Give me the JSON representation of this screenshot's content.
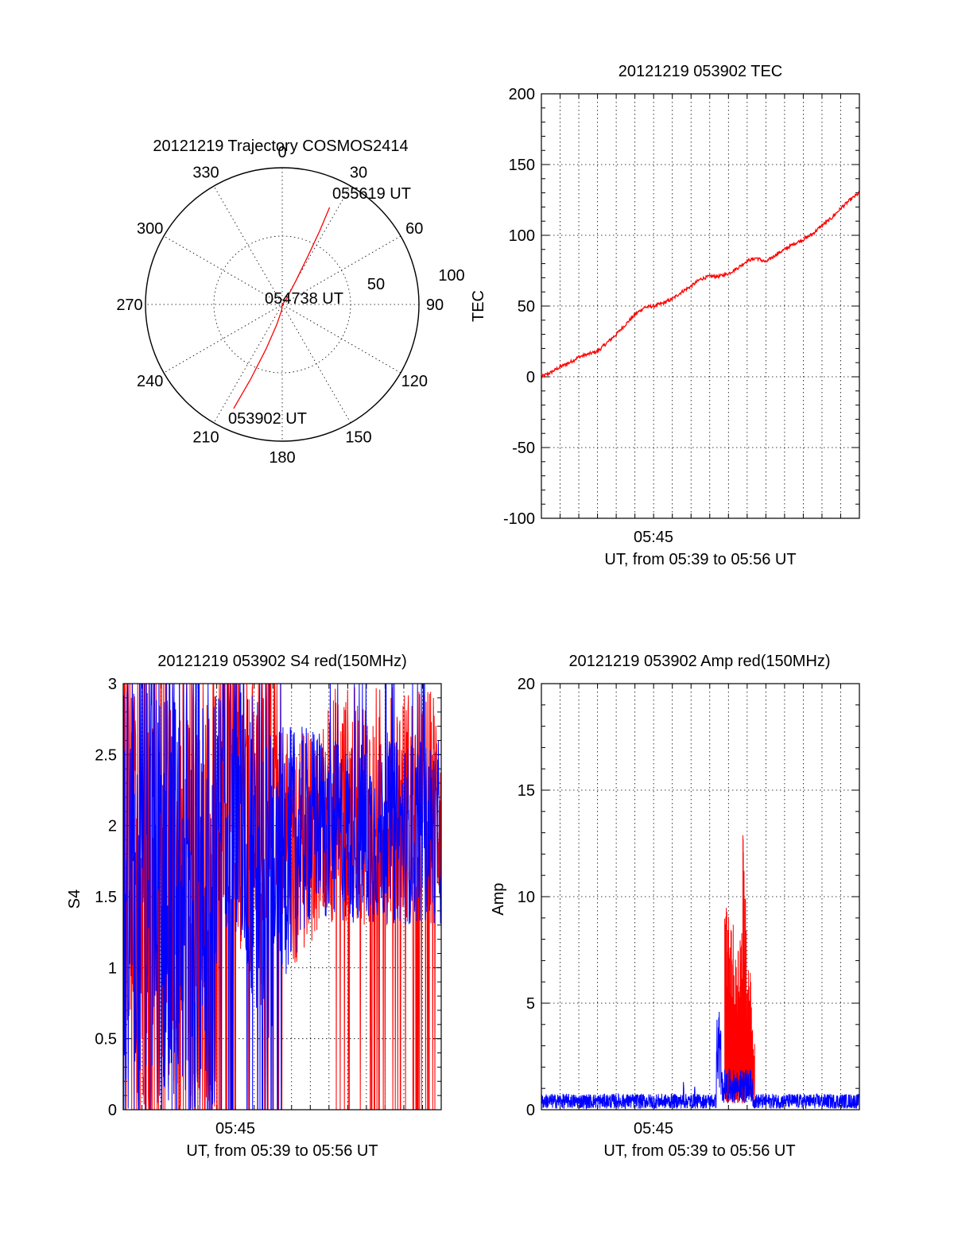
{
  "colors": {
    "red": "#ff0000",
    "blue": "#0000ff",
    "axis": "#000000",
    "background": "#ffffff"
  },
  "chart_data": [
    {
      "type": "polar",
      "title": "20121219 Trajectory COSMOS2414",
      "angle_labels": [
        "0",
        "30",
        "60",
        "90",
        "120",
        "150",
        "180",
        "210",
        "240",
        "270",
        "300",
        "330"
      ],
      "radius_labels": [
        "50",
        "100"
      ],
      "series": [
        {
          "color": "#ff0000",
          "points": [
            [
              205,
              84
            ],
            [
              203,
              60
            ],
            [
              200,
              35
            ],
            [
              195,
              15
            ],
            [
              185,
              4
            ],
            [
              90,
              0
            ],
            [
              38,
              5
            ],
            [
              30,
              20
            ],
            [
              28,
              40
            ],
            [
              27,
              60
            ],
            [
              26,
              79
            ]
          ]
        }
      ],
      "annotations": {
        "start": {
          "text": "053902 UT",
          "azimuth": 205,
          "distance": 84
        },
        "mid": {
          "text": "054738 UT",
          "azimuth": 0,
          "distance": 0
        },
        "end": {
          "text": "055619 UT",
          "azimuth": 26,
          "distance": 79
        }
      }
    },
    {
      "type": "line",
      "title": "20121219 053902 TEC",
      "ylabel": "TEC",
      "xlabel": "UT, from 05:39 to 05:56 UT",
      "ylim": [
        -100,
        200
      ],
      "yticks": [
        "-100",
        "-50",
        "0",
        "50",
        "100",
        "150",
        "200"
      ],
      "xticks": [
        "05:45"
      ],
      "x_range_minutes": [
        0,
        17
      ],
      "grid": true,
      "series": [
        {
          "color": "#ff0000",
          "x": [
            0,
            0.5,
            1,
            1.5,
            2,
            2.5,
            3,
            3.5,
            4,
            4.5,
            5,
            5.5,
            6,
            6.5,
            7,
            7.5,
            8,
            8.5,
            9,
            9.5,
            10,
            10.5,
            11,
            11.5,
            12,
            12.5,
            13,
            13.5,
            14,
            14.5,
            15,
            15.5,
            16,
            16.5,
            17
          ],
          "y": [
            0,
            3,
            7,
            10,
            14,
            16,
            18,
            24,
            30,
            37,
            44,
            49,
            50,
            52,
            55,
            60,
            64,
            69,
            71,
            71,
            73,
            77,
            82,
            84,
            81,
            86,
            90,
            94,
            97,
            101,
            107,
            112,
            119,
            125,
            130
          ]
        }
      ]
    },
    {
      "type": "line",
      "title": "20121219 053902 S4 red(150MHz)",
      "ylabel": "S4",
      "xlabel": "UT, from 05:39 to 05:56 UT",
      "ylim": [
        0,
        3
      ],
      "yticks": [
        "0",
        "0.5",
        "1",
        "1.5",
        "2",
        "2.5",
        "3"
      ],
      "xticks": [
        "05:45"
      ],
      "x_range_minutes": [
        0,
        17
      ],
      "grid": true,
      "series": [
        {
          "color": "#ff0000",
          "x": [
            0,
            17
          ],
          "y": [
            0,
            3
          ],
          "style": "dense-noise-envelope"
        },
        {
          "color": "#0000ff",
          "x": [
            0,
            17
          ],
          "y": [
            0.35,
            3
          ],
          "style": "dense-noise-envelope"
        }
      ]
    },
    {
      "type": "line",
      "title": "20121219 053902 Amp red(150MHz)",
      "ylabel": "Amp",
      "xlabel": "UT, from 05:39 to 05:56 UT",
      "ylim": [
        0,
        20
      ],
      "yticks": [
        "0",
        "5",
        "10",
        "15",
        "20"
      ],
      "xticks": [
        "05:45"
      ],
      "x_range_minutes": [
        0,
        17
      ],
      "grid": true,
      "series": [
        {
          "color": "#0000ff",
          "baseline": 0.4,
          "noise": 0.5,
          "spikes": [
            {
              "x": 7.6,
              "y": 1.5
            },
            {
              "x": 8.2,
              "y": 1.2
            },
            {
              "x": 9.5,
              "y": 5.0
            }
          ]
        },
        {
          "color": "#ff0000",
          "burst_range": [
            9.8,
            11.4
          ],
          "peaks": [
            9.8,
            9.2,
            8.7,
            7.3,
            8.3,
            9.4,
            13.3,
            8.6,
            7.2,
            4.0
          ]
        }
      ]
    }
  ]
}
